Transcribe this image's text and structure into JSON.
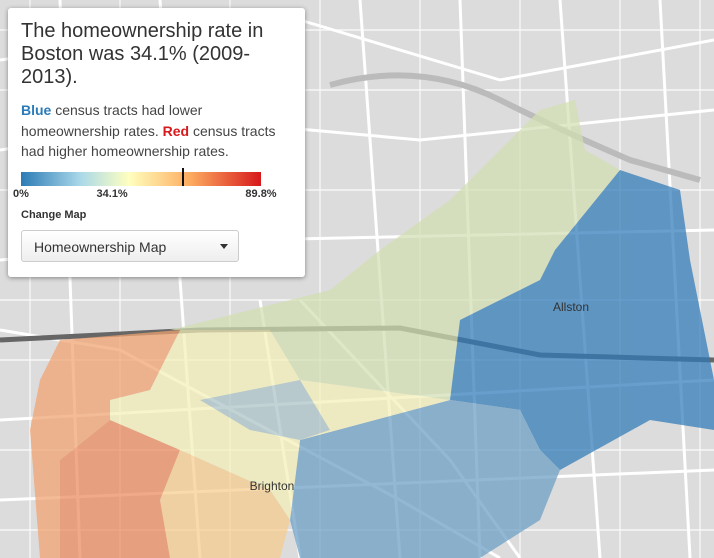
{
  "panel": {
    "title": "The homeownership rate in Boston was 34.1% (2009-2013).",
    "description": [
      {
        "text": "Blue",
        "style": "blue"
      },
      {
        "text": " census tracts had lower homeownership rates. "
      },
      {
        "text": "Red",
        "style": "red"
      },
      {
        "text": " census tracts had higher homeownership rates."
      }
    ],
    "legend": {
      "ticks": [
        {
          "value": 0,
          "label": "0%"
        },
        {
          "value": 34.1,
          "label": "34.1%"
        },
        {
          "value": 89.8,
          "label": "89.8%"
        }
      ]
    },
    "change_map_label": "Change Map",
    "dropdown": "Homeownership Map"
  },
  "map": {
    "places": [
      "Allston",
      "Brighton"
    ]
  }
}
